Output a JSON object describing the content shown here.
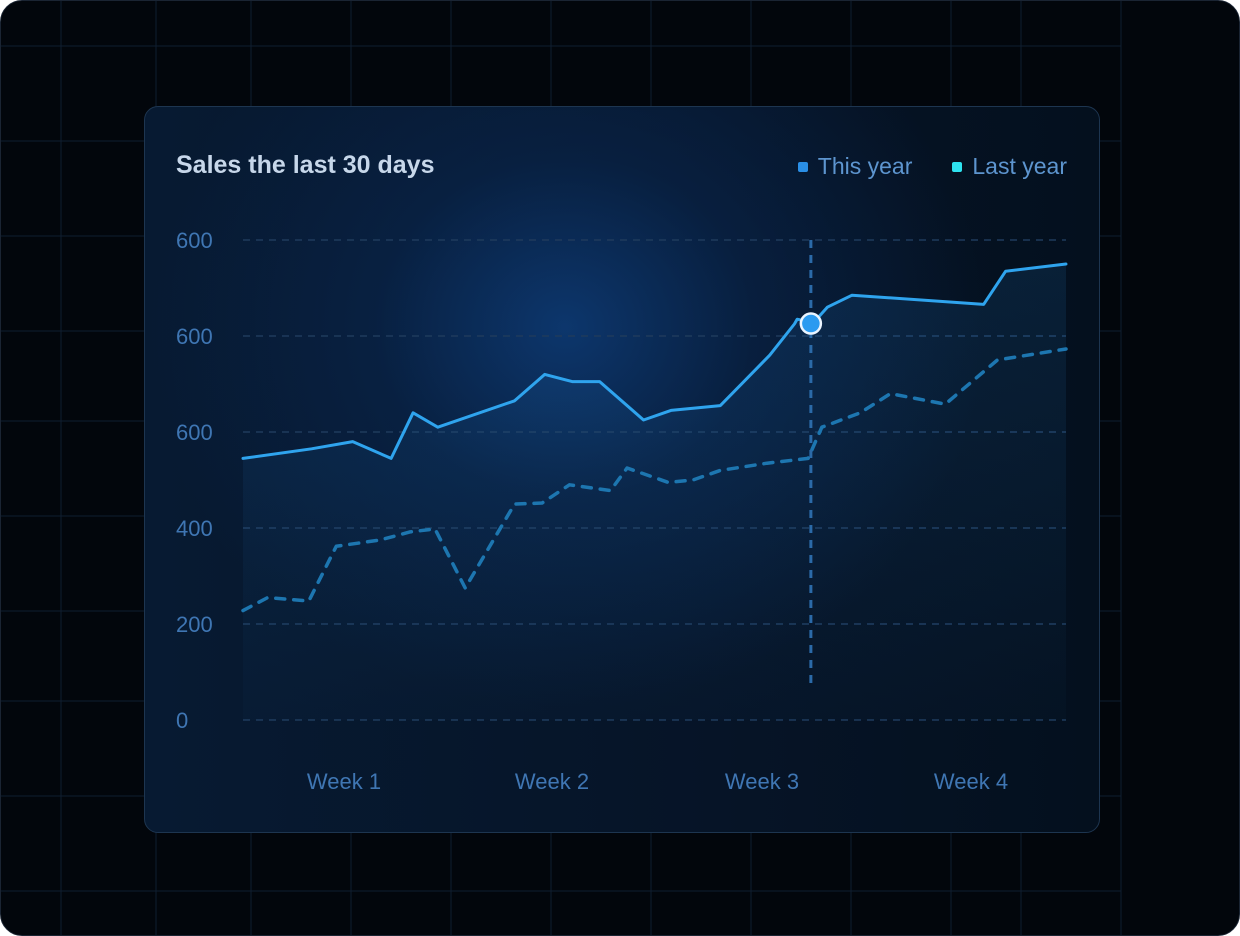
{
  "chart_data": {
    "type": "line",
    "title": "Sales the last 30 days",
    "xlabel": "",
    "ylabel": "",
    "y_tick_labels": [
      "600",
      "600",
      "600",
      "400",
      "200",
      "0"
    ],
    "x_tick_labels": [
      "Week 1",
      "Week 2",
      "Week 3",
      "Week 4"
    ],
    "ylim": [
      0,
      1000
    ],
    "xlim": [
      0,
      30
    ],
    "grid": "horizontal-dashed",
    "legend_position": "top-right",
    "series": [
      {
        "name": "This year",
        "color": "#2fa4ee",
        "style": "solid",
        "x": [
          0,
          2.5,
          4,
          5.4,
          6.2,
          7.1,
          9.9,
          11,
          12,
          13,
          14.6,
          15.6,
          17.4,
          19.2,
          20.1,
          20.2,
          20.8,
          21.3,
          22.2,
          27,
          27.8,
          30
        ],
        "y": [
          545,
          565,
          580,
          545,
          640,
          610,
          665,
          720,
          705,
          705,
          625,
          645,
          655,
          760,
          825,
          835,
          828,
          860,
          885,
          866,
          935,
          950
        ]
      },
      {
        "name": "Last year",
        "color": "#1d76b0",
        "style": "dashed",
        "x": [
          0,
          0.9,
          2.4,
          3.4,
          5,
          6.1,
          7,
          8.1,
          9.9,
          10.9,
          11.9,
          13.4,
          14,
          15.5,
          16.4,
          17.4,
          19.1,
          20.6,
          21.1,
          22.5,
          23.6,
          25.6,
          27.5,
          30
        ],
        "y": [
          228,
          255,
          248,
          362,
          375,
          392,
          398,
          275,
          450,
          452,
          490,
          478,
          525,
          495,
          500,
          520,
          535,
          545,
          610,
          640,
          680,
          658,
          750,
          773
        ]
      }
    ],
    "highlight": {
      "series": "This year",
      "x": 20.7,
      "y": 826
    }
  },
  "legend": [
    {
      "label": "This year",
      "color": "#2a8fe6"
    },
    {
      "label": "Last year",
      "color": "#2ee3f0"
    }
  ]
}
